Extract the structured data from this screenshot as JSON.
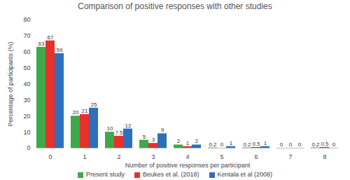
{
  "chart_data": {
    "type": "bar",
    "title": "Comparison of positive responses with other studies",
    "x_label": "Number of positive responses per participant",
    "y_label": "Percentage of participants (%)",
    "categories": [
      "0",
      "1",
      "2",
      "3",
      "4",
      "5",
      "6",
      "7",
      "8"
    ],
    "series": [
      {
        "name": "Present study",
        "color": "#3ea84a",
        "values": [
          63,
          20,
          10,
          5,
          2,
          0.2,
          0.2,
          0,
          0.2
        ]
      },
      {
        "name": "Beukes et al. (2018)",
        "color": "#e8302a",
        "values": [
          67,
          21,
          7.5,
          3,
          1,
          0,
          0.5,
          0,
          0.5
        ]
      },
      {
        "name": "Kentala et al (2008)",
        "color": "#2c6fbb",
        "values": [
          59,
          25,
          12,
          9,
          2,
          1,
          1,
          0,
          0
        ]
      }
    ],
    "ylim": [
      0,
      80
    ],
    "yticks": [
      0,
      10,
      20,
      30,
      40,
      50,
      60,
      70,
      80
    ],
    "grid": false,
    "legend": "bottom",
    "data_labels": true
  }
}
